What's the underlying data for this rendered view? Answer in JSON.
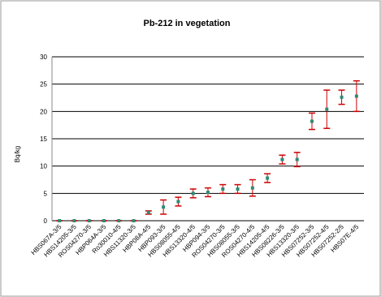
{
  "chart_data": {
    "type": "errorbar",
    "title": "Pb-212 in vegetation",
    "y_label": "Bq/kg",
    "categories": [
      "HBS067A-3/5",
      "HBS14205-3/5",
      "ROS04270-3/5",
      "HBP064A-3/5",
      "Ro30010-4/5",
      "HBS11320-3/5",
      "HBP08A-4/5",
      "HBP093-3/5",
      "HBS08055-4/5",
      "HBS13320-4/5",
      "HBP094-3/5",
      "ROS04270-3/5",
      "HBS08055-3/5",
      "ROS04270-4/5",
      "HBS14205-4/5",
      "HBS08226-3/5",
      "HBS13320-3/5",
      "HBS07252-3/5",
      "HBS07252-4/5",
      "HBS07252-2/5",
      "HBS07E-4/5"
    ],
    "values": [
      0,
      0,
      0,
      0,
      0,
      0,
      1.5,
      2.5,
      3.5,
      5,
      5.2,
      5.8,
      5.8,
      6,
      7.8,
      11.2,
      11.2,
      18.2,
      20.4,
      22.6,
      22.8
    ],
    "errors": [
      0,
      0,
      0,
      0,
      0,
      0,
      0.3,
      1.3,
      0.8,
      0.8,
      0.8,
      0.8,
      0.8,
      1.5,
      0.8,
      0.8,
      1.3,
      1.5,
      3.5,
      1.3,
      2.8
    ],
    "color": "#2e8b74",
    "error_color": "#cc0000",
    "ylim": [
      0,
      30
    ],
    "yticks": [
      0,
      5,
      10,
      15,
      20,
      25,
      30
    ],
    "grid": true
  }
}
